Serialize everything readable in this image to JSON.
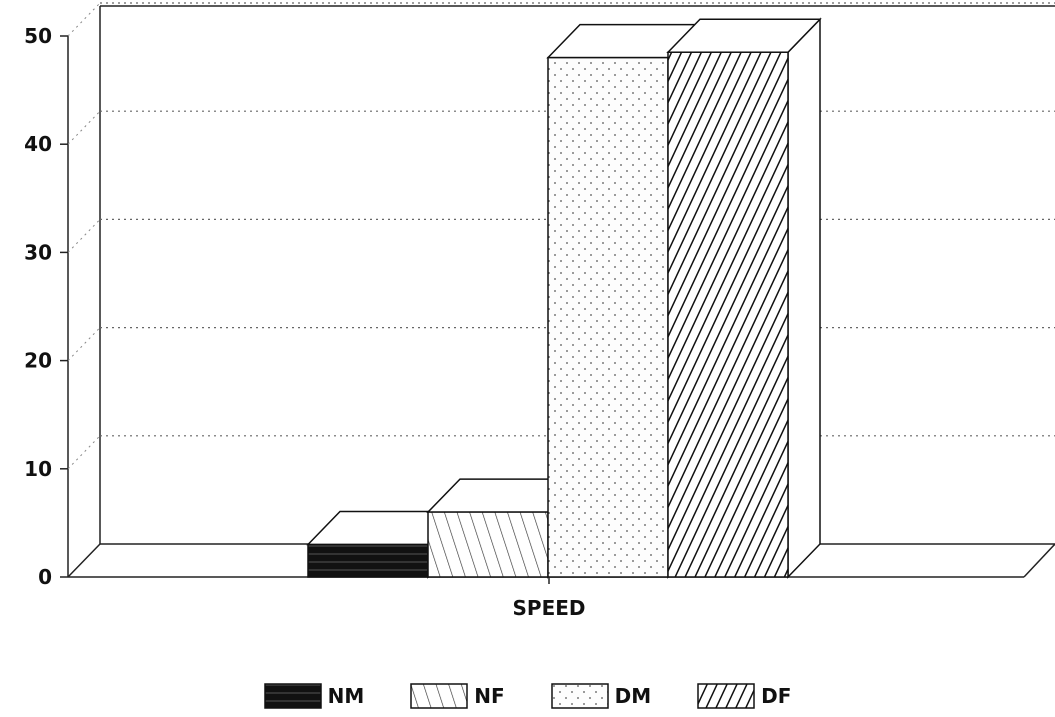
{
  "chart_data": {
    "type": "bar",
    "categories": [
      "SPEED"
    ],
    "series": [
      {
        "name": "NM",
        "values": [
          3
        ]
      },
      {
        "name": "NF",
        "values": [
          6
        ]
      },
      {
        "name": "DM",
        "values": [
          48
        ]
      },
      {
        "name": "DF",
        "values": [
          48.5
        ]
      }
    ],
    "title": "",
    "xlabel": "",
    "ylabel": "",
    "ylim": [
      0,
      50
    ],
    "yticks": [
      "0",
      "10",
      "20",
      "30",
      "40",
      "50"
    ],
    "grid": true,
    "legend_position": "bottom",
    "three_d": true,
    "patterns": [
      "solid-dark",
      "backslash-hatch",
      "dots",
      "forward-hatch"
    ]
  }
}
